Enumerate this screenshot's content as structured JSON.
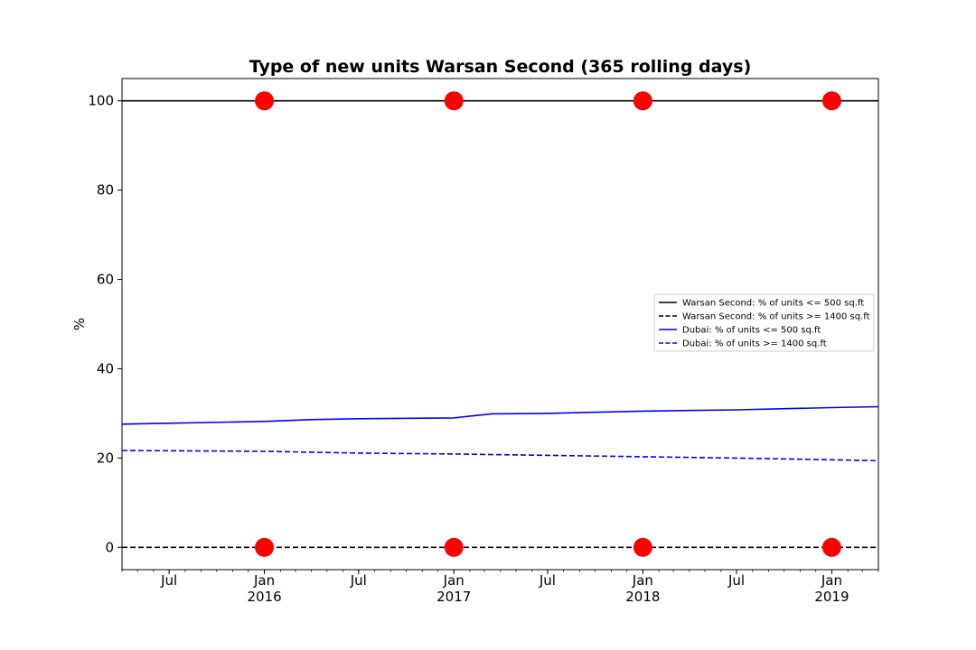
{
  "chart_data": {
    "type": "line",
    "title": "Type of new units Warsan Second (365 rolling days)",
    "xlabel": "",
    "ylabel": "%",
    "ylim": [
      -5,
      105
    ],
    "xlim": [
      "2015-04-01",
      "2019-04-01"
    ],
    "yticks": [
      0,
      20,
      40,
      60,
      80,
      100
    ],
    "xticks": [
      {
        "date": "2015-07-01",
        "label": "Jul",
        "sublabel": ""
      },
      {
        "date": "2016-01-01",
        "label": "Jan",
        "sublabel": "2016"
      },
      {
        "date": "2016-07-01",
        "label": "Jul",
        "sublabel": ""
      },
      {
        "date": "2017-01-01",
        "label": "Jan",
        "sublabel": "2017"
      },
      {
        "date": "2017-07-01",
        "label": "Jul",
        "sublabel": ""
      },
      {
        "date": "2018-01-01",
        "label": "Jan",
        "sublabel": "2018"
      },
      {
        "date": "2018-07-01",
        "label": "Jul",
        "sublabel": ""
      },
      {
        "date": "2019-01-01",
        "label": "Jan",
        "sublabel": "2019"
      }
    ],
    "series": [
      {
        "name": "Warsan Second: % of units <= 500 sq.ft",
        "color": "#000000",
        "dash": "solid",
        "x": [
          "2015-04-01",
          "2019-04-01"
        ],
        "values": [
          100,
          100
        ]
      },
      {
        "name": "Warsan Second: % of units >= 1400 sq.ft",
        "color": "#000000",
        "dash": "dashed",
        "x": [
          "2015-04-01",
          "2019-04-01"
        ],
        "values": [
          0,
          0
        ]
      },
      {
        "name": "Dubai: % of units <= 500 sq.ft",
        "color": "#0000ff",
        "dash": "solid",
        "x": [
          "2015-04-01",
          "2015-07-01",
          "2016-01-01",
          "2016-04-01",
          "2016-07-01",
          "2017-01-01",
          "2017-02-01",
          "2017-03-15",
          "2017-07-01",
          "2018-01-01",
          "2018-07-01",
          "2019-01-01",
          "2019-04-01"
        ],
        "values": [
          27.6,
          27.8,
          28.2,
          28.6,
          28.8,
          29.0,
          29.4,
          29.9,
          30.0,
          30.5,
          30.8,
          31.3,
          31.5
        ]
      },
      {
        "name": "Dubai: % of units >= 1400 sq.ft",
        "color": "#0000ff",
        "dash": "dashed",
        "x": [
          "2015-04-01",
          "2016-01-01",
          "2016-07-01",
          "2017-01-01",
          "2017-07-01",
          "2018-01-01",
          "2018-07-01",
          "2019-01-01",
          "2019-04-01"
        ],
        "values": [
          21.7,
          21.5,
          21.1,
          20.9,
          20.6,
          20.3,
          20.0,
          19.6,
          19.4
        ]
      }
    ],
    "markers": {
      "name": "red markers",
      "color": "#ff0000",
      "x": [
        "2016-01-01",
        "2017-01-01",
        "2018-01-01",
        "2019-01-01"
      ],
      "top_values": [
        100,
        100,
        100,
        100
      ],
      "bottom_values": [
        0,
        0,
        0,
        0
      ]
    },
    "legend_position": "center-right"
  }
}
